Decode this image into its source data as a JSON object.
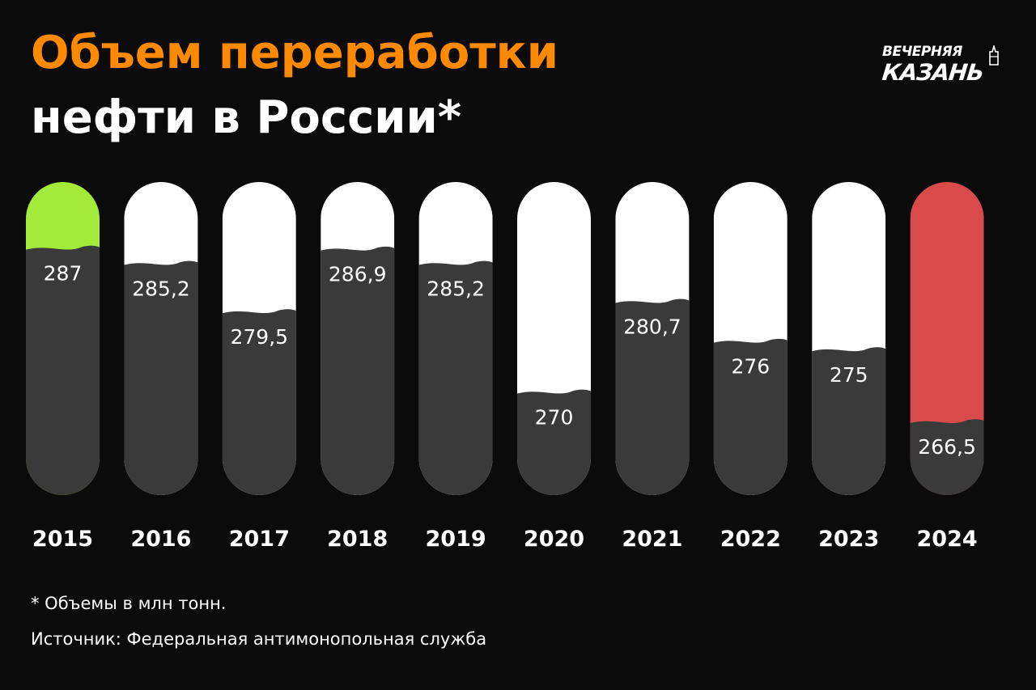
{
  "title": {
    "line1": "Объем переработки",
    "line2": "нефти в России*"
  },
  "logo": {
    "line1": "ВЕЧЕРНЯЯ",
    "line2": "КАЗАНЬ"
  },
  "colors": {
    "background": "#0b0b0b",
    "title_accent": "#ff8a00",
    "capsule_empty": "#ffffff",
    "capsule_fill": "#3a3a3a",
    "highlight_max": "#a4ea3a",
    "highlight_min": "#d94b4b",
    "text": "#ffffff"
  },
  "chart_data": {
    "type": "bar",
    "categories": [
      "2015",
      "2016",
      "2017",
      "2018",
      "2019",
      "2020",
      "2021",
      "2022",
      "2023",
      "2024"
    ],
    "values": [
      287,
      285.2,
      279.5,
      286.9,
      285.2,
      270,
      280.7,
      276,
      275,
      266.5
    ],
    "value_labels": [
      "287",
      "285,2",
      "279,5",
      "286,9",
      "285,2",
      "270",
      "280,7",
      "276",
      "275",
      "266,5"
    ],
    "highlight": {
      "max_index": 0,
      "min_index": 9
    },
    "ylim": [
      258,
      295
    ]
  },
  "footer": {
    "note": "* Объемы в млн тонн.",
    "source": "Источник: Федеральная антимонопольная служба"
  }
}
